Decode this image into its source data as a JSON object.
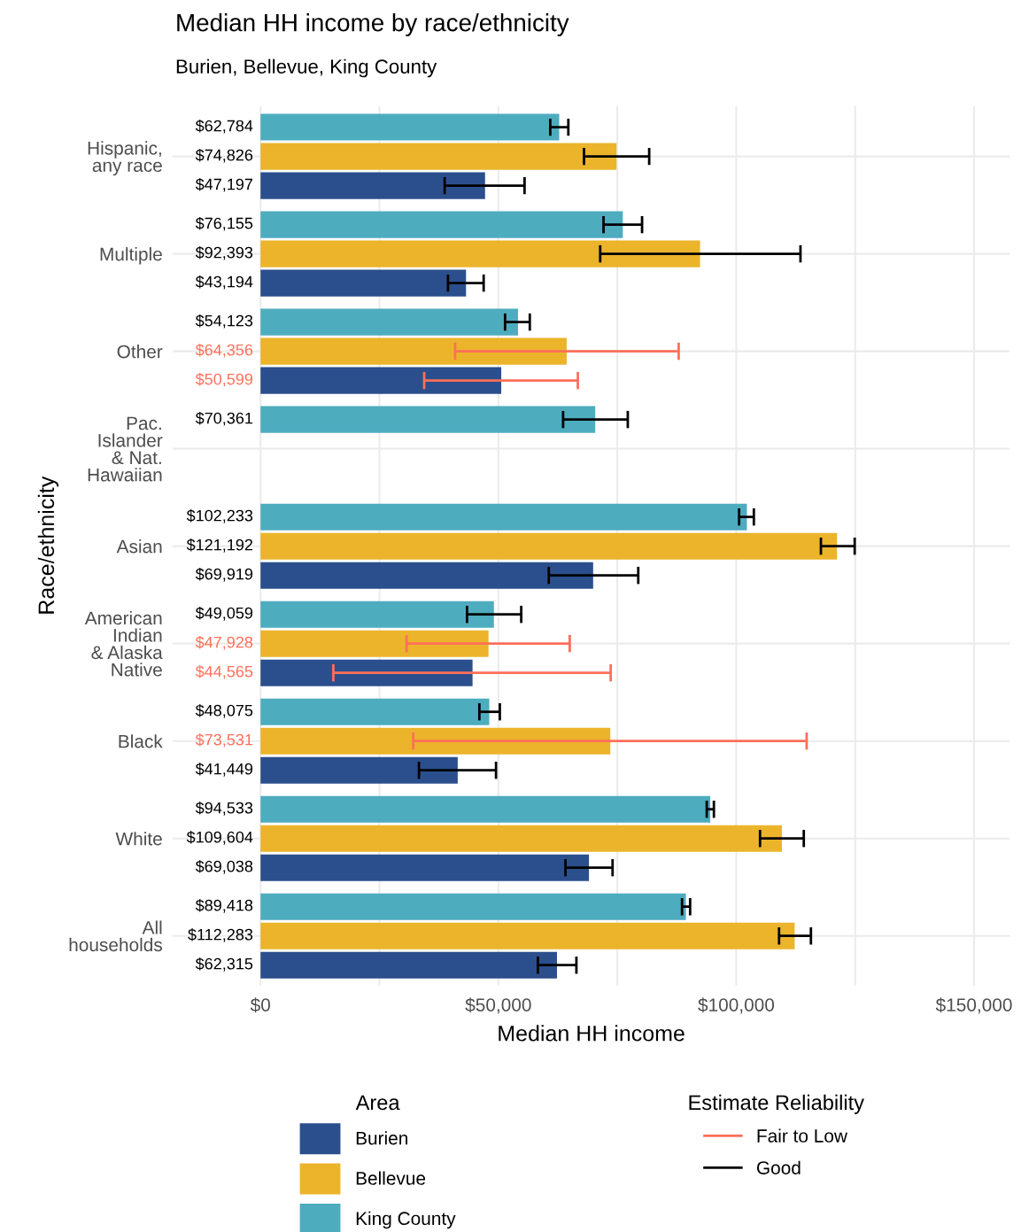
{
  "chart_data": {
    "type": "bar",
    "orientation": "horizontal",
    "title": "Median HH income by race/ethnicity",
    "subtitle": "Burien, Bellevue, King County",
    "xlabel": "Median HH income",
    "ylabel": "Race/ethnicity",
    "legend_title": "Area",
    "annotations": [
      "Estimate Reliability"
    ],
    "categories": [
      "Hispanic,\nany race",
      "Multiple",
      "Other",
      "Pac.\nIslander\n& Nat.\nHawaiian",
      "Asian",
      "American\nIndian\n& Alaska\nNative",
      "Black",
      "White",
      "All\nhouseholds"
    ],
    "series": [
      {
        "name": "King County",
        "color": "#4eacbf",
        "values": [
          62784,
          76155,
          54123,
          70361,
          102233,
          49059,
          48075,
          94533,
          89418
        ],
        "value_labels": [
          "$62,784",
          "$76,155",
          "$54,123",
          "$70,361",
          "$102,233",
          "$49,059",
          "$48,075",
          "$94,533",
          "$89,418"
        ],
        "errors": [
          [
            60900,
            64700
          ],
          [
            72100,
            80200
          ],
          [
            51400,
            56600
          ],
          [
            63600,
            77200
          ],
          [
            100600,
            103700
          ],
          [
            43400,
            54800
          ],
          [
            46000,
            50300
          ],
          [
            93800,
            95300
          ],
          [
            88600,
            90300
          ]
        ]
      },
      {
        "name": "Bellevue",
        "color": "#ebb42b",
        "values": [
          74826,
          92393,
          null,
          null,
          121192,
          null,
          null,
          109604,
          112283
        ],
        "value_labels": [
          "$74,826",
          "$92,393",
          null,
          null,
          "$121,192",
          null,
          null,
          "$109,604",
          "$112,283"
        ],
        "errors": [
          [
            68000,
            81700
          ],
          [
            71400,
            113500
          ],
          null,
          null,
          [
            117800,
            124900
          ],
          null,
          null,
          [
            105000,
            114200
          ],
          [
            109000,
            115700
          ]
        ]
      },
      {
        "name": "Burien",
        "color": "#2b4f8c",
        "values": [
          47197,
          43194,
          null,
          null,
          69919,
          null,
          41449,
          69038,
          62315
        ],
        "value_labels": [
          "$47,197",
          "$43,194",
          null,
          null,
          "$69,919",
          null,
          "$41,449",
          "$69,038",
          "$62,315"
        ],
        "errors": [
          [
            38700,
            55500
          ],
          [
            39400,
            46900
          ],
          null,
          null,
          [
            60600,
            79400
          ],
          null,
          [
            33300,
            49500
          ],
          [
            64100,
            74000
          ],
          [
            58300,
            66400
          ]
        ]
      },
      {
        "color": "#ebb42b",
        "values": [
          null,
          null,
          64356,
          null,
          null,
          47928,
          73531,
          null,
          null
        ],
        "value_labels": [
          null,
          null,
          "$64,356",
          null,
          null,
          "$47,928",
          "$73,531",
          null,
          null
        ],
        "errors": [
          null,
          null,
          [
            40900,
            87900
          ],
          null,
          null,
          [
            30700,
            65000
          ],
          [
            32100,
            114800
          ],
          null,
          null
        ]
      },
      {
        "color": "#2b4f8c",
        "values": [
          null,
          null,
          50599,
          null,
          null,
          44565,
          null,
          null,
          null
        ],
        "value_labels": [
          null,
          null,
          "$50,599",
          null,
          null,
          "$44,565",
          null,
          null,
          null
        ],
        "errors": [
          null,
          null,
          [
            34400,
            66700
          ],
          null,
          null,
          [
            15300,
            73600
          ],
          null,
          null,
          null
        ]
      },
      {
        "name": "Fair to Low",
        "type": "line",
        "color": "#ff6f59",
        "values": [
          null,
          null,
          null,
          null,
          null,
          null,
          null,
          null,
          null
        ]
      },
      {
        "name": "Good",
        "type": "line",
        "color": "#000000",
        "values": [
          null,
          null,
          null,
          null,
          null,
          null,
          null,
          null,
          null
        ]
      }
    ],
    "xlim": [
      -18500,
      157500
    ],
    "xticks": [
      {
        "value": 0,
        "label": "$0"
      },
      {
        "value": 25000,
        "label": null
      },
      {
        "value": 50000,
        "label": "$50,000"
      },
      {
        "value": 75000,
        "label": null
      },
      {
        "value": 100000,
        "label": "$100,000"
      },
      {
        "value": 125000,
        "label": null
      },
      {
        "value": 150000,
        "label": "$150,000"
      }
    ],
    "grid": true,
    "legend": "bottom"
  }
}
